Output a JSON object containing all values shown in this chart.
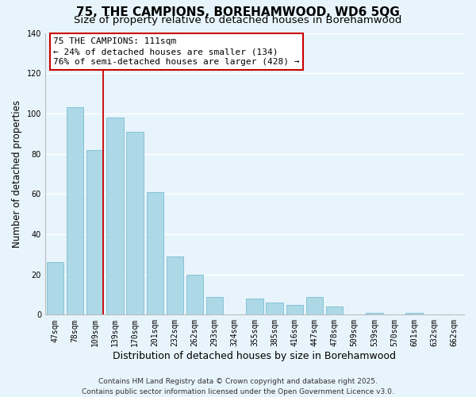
{
  "title": "75, THE CAMPIONS, BOREHAMWOOD, WD6 5QG",
  "subtitle": "Size of property relative to detached houses in Borehamwood",
  "xlabel": "Distribution of detached houses by size in Borehamwood",
  "ylabel": "Number of detached properties",
  "bar_labels": [
    "47sqm",
    "78sqm",
    "109sqm",
    "139sqm",
    "170sqm",
    "201sqm",
    "232sqm",
    "262sqm",
    "293sqm",
    "324sqm",
    "355sqm",
    "385sqm",
    "416sqm",
    "447sqm",
    "478sqm",
    "509sqm",
    "539sqm",
    "570sqm",
    "601sqm",
    "632sqm",
    "662sqm"
  ],
  "bar_values": [
    26,
    103,
    82,
    98,
    91,
    61,
    29,
    20,
    9,
    0,
    8,
    6,
    5,
    9,
    4,
    0,
    1,
    0,
    1,
    0,
    0
  ],
  "bar_color": "#add8e6",
  "bar_edge_color": "#7bbdd4",
  "vline_color": "#cc0000",
  "ylim": [
    0,
    140
  ],
  "annotation_title": "75 THE CAMPIONS: 111sqm",
  "annotation_line1": "← 24% of detached houses are smaller (134)",
  "annotation_line2": "76% of semi-detached houses are larger (428) →",
  "footer_line1": "Contains HM Land Registry data © Crown copyright and database right 2025.",
  "footer_line2": "Contains public sector information licensed under the Open Government Licence v3.0.",
  "background_color": "#e8f4fb",
  "title_fontsize": 11,
  "subtitle_fontsize": 9.5,
  "ylabel_fontsize": 8.5,
  "xlabel_fontsize": 9,
  "tick_fontsize": 7,
  "annotation_fontsize": 8,
  "footer_fontsize": 6.5
}
